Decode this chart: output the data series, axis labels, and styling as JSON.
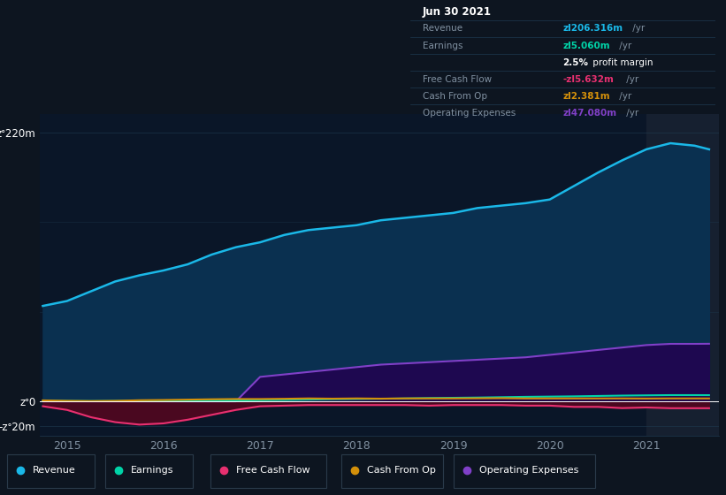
{
  "bg_color": "#0d1520",
  "plot_bg_color": "#0a1628",
  "grid_color": "#1e3a50",
  "text_color": "#8090a0",
  "years": [
    2014.75,
    2015.0,
    2015.25,
    2015.5,
    2015.75,
    2016.0,
    2016.25,
    2016.5,
    2016.75,
    2017.0,
    2017.25,
    2017.5,
    2017.75,
    2018.0,
    2018.25,
    2018.5,
    2018.75,
    2019.0,
    2019.25,
    2019.5,
    2019.75,
    2020.0,
    2020.25,
    2020.5,
    2020.75,
    2021.0,
    2021.25,
    2021.5,
    2021.65
  ],
  "revenue": [
    78,
    82,
    90,
    98,
    103,
    107,
    112,
    120,
    126,
    130,
    136,
    140,
    142,
    144,
    148,
    150,
    152,
    154,
    158,
    160,
    162,
    165,
    176,
    187,
    197,
    206,
    211,
    209,
    206
  ],
  "earnings": [
    0.5,
    0.3,
    0.2,
    0.3,
    0.4,
    0.4,
    0.5,
    0.6,
    0.7,
    0.9,
    1.1,
    1.4,
    1.7,
    1.9,
    2.1,
    2.4,
    2.7,
    2.9,
    3.1,
    3.4,
    3.7,
    3.9,
    4.1,
    4.4,
    4.7,
    4.9,
    5.1,
    5.1,
    5.06
  ],
  "free_cash_flow": [
    -4,
    -7,
    -13,
    -17,
    -19,
    -18,
    -15,
    -11,
    -7,
    -4,
    -3.5,
    -3,
    -3,
    -3,
    -3,
    -3,
    -3.5,
    -3,
    -3,
    -3,
    -3.5,
    -3.5,
    -4.5,
    -4.5,
    -5.5,
    -5,
    -5.6,
    -5.6,
    -5.6
  ],
  "cash_from_op": [
    0.8,
    0.4,
    0.2,
    0.4,
    0.9,
    1.1,
    1.4,
    1.7,
    1.9,
    1.9,
    2.1,
    2.4,
    2.2,
    2.4,
    2.2,
    2.4,
    2.4,
    2.4,
    2.5,
    2.6,
    2.4,
    2.4,
    2.4,
    2.4,
    2.4,
    2.3,
    2.4,
    2.4,
    2.381
  ],
  "operating_expenses": [
    0,
    0,
    0,
    0,
    0,
    0,
    0,
    0,
    0,
    20,
    22,
    24,
    26,
    28,
    30,
    31,
    32,
    33,
    34,
    35,
    36,
    38,
    40,
    42,
    44,
    46,
    47,
    47,
    47.08
  ],
  "revenue_color": "#1ab8e8",
  "earnings_color": "#00d4a8",
  "free_cash_flow_color": "#e83070",
  "cash_from_op_color": "#d4900a",
  "operating_expenses_color": "#8040c8",
  "revenue_fill": "#0a3050",
  "operating_expenses_fill": "#1e0850",
  "free_cash_flow_fill": "#4a0820",
  "ylim_min": -28,
  "ylim_max": 235,
  "xlim_min": 2014.72,
  "xlim_max": 2021.75,
  "xticks": [
    2015,
    2016,
    2017,
    2018,
    2019,
    2020,
    2021
  ],
  "ytick_vals": [
    -20,
    0,
    220
  ],
  "ytick_labels": [
    "-zᐤ20m",
    "zᐤ0",
    "zᐤ220m"
  ],
  "shaded_x_start": 2021.0,
  "shaded_color": "#162030",
  "info_box_bg": "#050c14",
  "info_box_border": "#1e3a50",
  "legend_items": [
    {
      "label": "Revenue",
      "color": "#1ab8e8"
    },
    {
      "label": "Earnings",
      "color": "#00d4a8"
    },
    {
      "label": "Free Cash Flow",
      "color": "#e83070"
    },
    {
      "label": "Cash From Op",
      "color": "#d4900a"
    },
    {
      "label": "Operating Expenses",
      "color": "#8040c8"
    }
  ]
}
